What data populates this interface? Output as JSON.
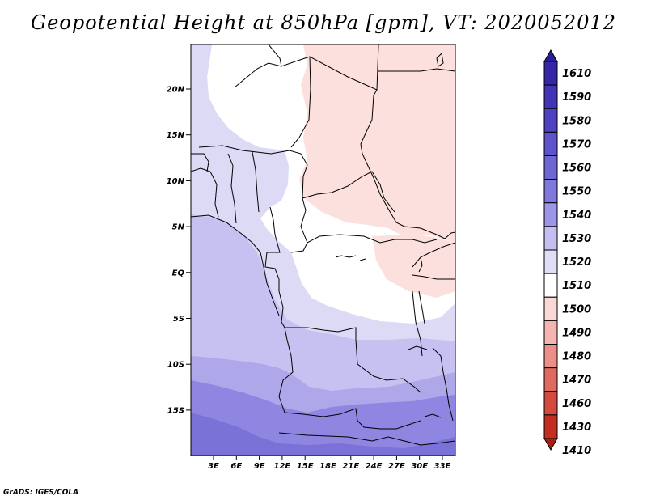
{
  "title": "Geopotential Height at 850hPa [gpm], VT: 2020052012",
  "credit": "GrADS: IGES/COLA",
  "map": {
    "lat_ticks": [
      "20N",
      "15N",
      "10N",
      "5N",
      "EQ",
      "5S",
      "10S",
      "15S"
    ],
    "lon_ticks": [
      "3E",
      "6E",
      "9E",
      "12E",
      "15E",
      "18E",
      "21E",
      "24E",
      "27E",
      "30E",
      "33E"
    ]
  },
  "colorbar": {
    "labels": [
      "1610",
      "1590",
      "1580",
      "1570",
      "1560",
      "1550",
      "1540",
      "1530",
      "1520",
      "1510",
      "1500",
      "1490",
      "1480",
      "1470",
      "1460",
      "1430",
      "1410"
    ],
    "colors": [
      "#2a1d9c",
      "#3526a8",
      "#4234b6",
      "#4f42c2",
      "#5e53cc",
      "#6f66d6",
      "#8178dd",
      "#9d95e6",
      "#c3bff0",
      "#e0def7",
      "#ffffff",
      "#fad8d6",
      "#f4b5b0",
      "#eb8f88",
      "#e06a60",
      "#d44a3c",
      "#c42d20",
      "#a81e12"
    ]
  },
  "regions": {
    "colors": {
      "h1500": "#fbe0dd",
      "h1510": "#ffffff",
      "h1520": "#dcdaf5",
      "h1530": "#c6c1f0",
      "h1540": "#aea7ea",
      "h1550": "#8e86e0",
      "h1560": "#7b72d8"
    }
  }
}
